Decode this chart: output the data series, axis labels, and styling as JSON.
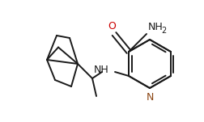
{
  "bg_color": "#ffffff",
  "line_color": "#1a1a1a",
  "text_color": "#1a1a1a",
  "o_color": "#cc0000",
  "n_color": "#8B4513",
  "bond_lw": 1.4,
  "figsize": [
    2.53,
    1.51
  ],
  "dpi": 100,
  "xlim": [
    0,
    253
  ],
  "ylim": [
    0,
    151
  ]
}
